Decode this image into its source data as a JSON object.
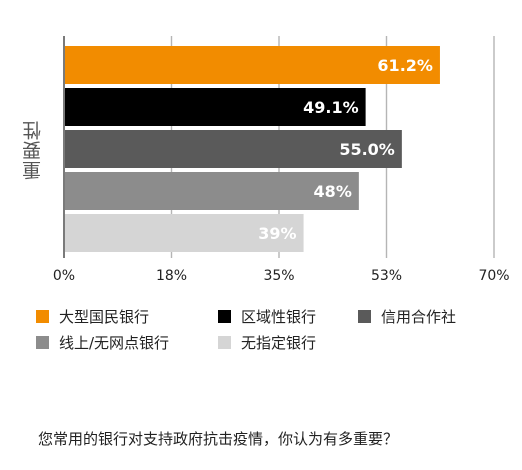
{
  "chart_data": {
    "type": "bar",
    "orientation": "horizontal",
    "ylabel": "重要性",
    "xlim": [
      0,
      70
    ],
    "x_ticks": [
      "0%",
      "18%",
      "35%",
      "53%",
      "70%"
    ],
    "grid": true,
    "legend_position": "bottom",
    "series": [
      {
        "name": "大型国民银行",
        "value": 61.2,
        "label": "61.2%",
        "color": "#F28C00"
      },
      {
        "name": "区域性银行",
        "value": 49.1,
        "label": "49.1%",
        "color": "#000000"
      },
      {
        "name": "信用合作社",
        "value": 55.0,
        "label": "55.0%",
        "color": "#5A5A5A"
      },
      {
        "name": "线上/无网点银行",
        "value": 48,
        "label": "48%",
        "color": "#8C8C8C"
      },
      {
        "name": "无指定银行",
        "value": 39,
        "label": "39%",
        "color": "#D5D5D5"
      }
    ]
  },
  "question": "您常用的银行对支持政府抗击疫情，你认为有多重要？"
}
